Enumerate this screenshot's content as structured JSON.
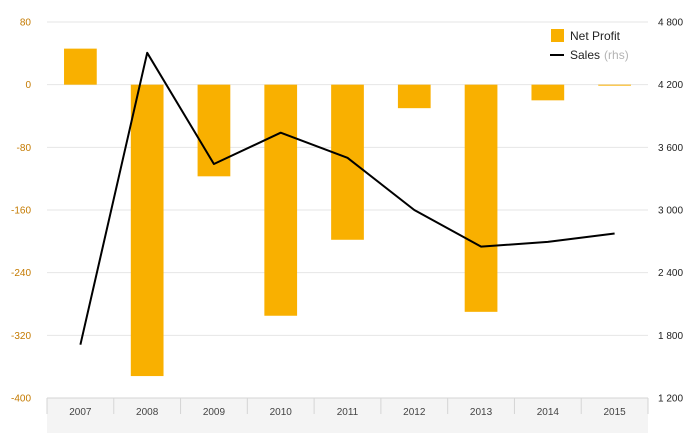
{
  "chart_data": {
    "type": "bar+line",
    "categories": [
      "2007",
      "2008",
      "2009",
      "2010",
      "2011",
      "2012",
      "2013",
      "2014",
      "2015"
    ],
    "series": [
      {
        "name": "Net Profit",
        "type": "bar",
        "axis": "left",
        "color": "#F9B000",
        "values": [
          46,
          -372,
          -117,
          -295,
          -198,
          -30,
          -290,
          -20,
          -1
        ]
      },
      {
        "name": "Sales",
        "type": "line",
        "axis": "right",
        "color": "#000000",
        "values": [
          1710,
          4505,
          3440,
          3740,
          3500,
          3000,
          2650,
          2695,
          2775
        ]
      }
    ],
    "left_axis": {
      "min": -400,
      "max": 80,
      "ticks": [
        "80",
        "0",
        "-80",
        "-160",
        "-240",
        "-320",
        "-400"
      ]
    },
    "right_axis": {
      "min": 1200,
      "max": 4800,
      "ticks": [
        "4 800",
        "4 200",
        "3 600",
        "3 000",
        "2 400",
        "1 800",
        "1 200"
      ]
    },
    "legend": {
      "position": "top-right",
      "items": [
        {
          "label": "Net Profit",
          "suffix": ""
        },
        {
          "label": "Sales",
          "suffix": "(rhs)"
        }
      ]
    },
    "grid": true
  }
}
